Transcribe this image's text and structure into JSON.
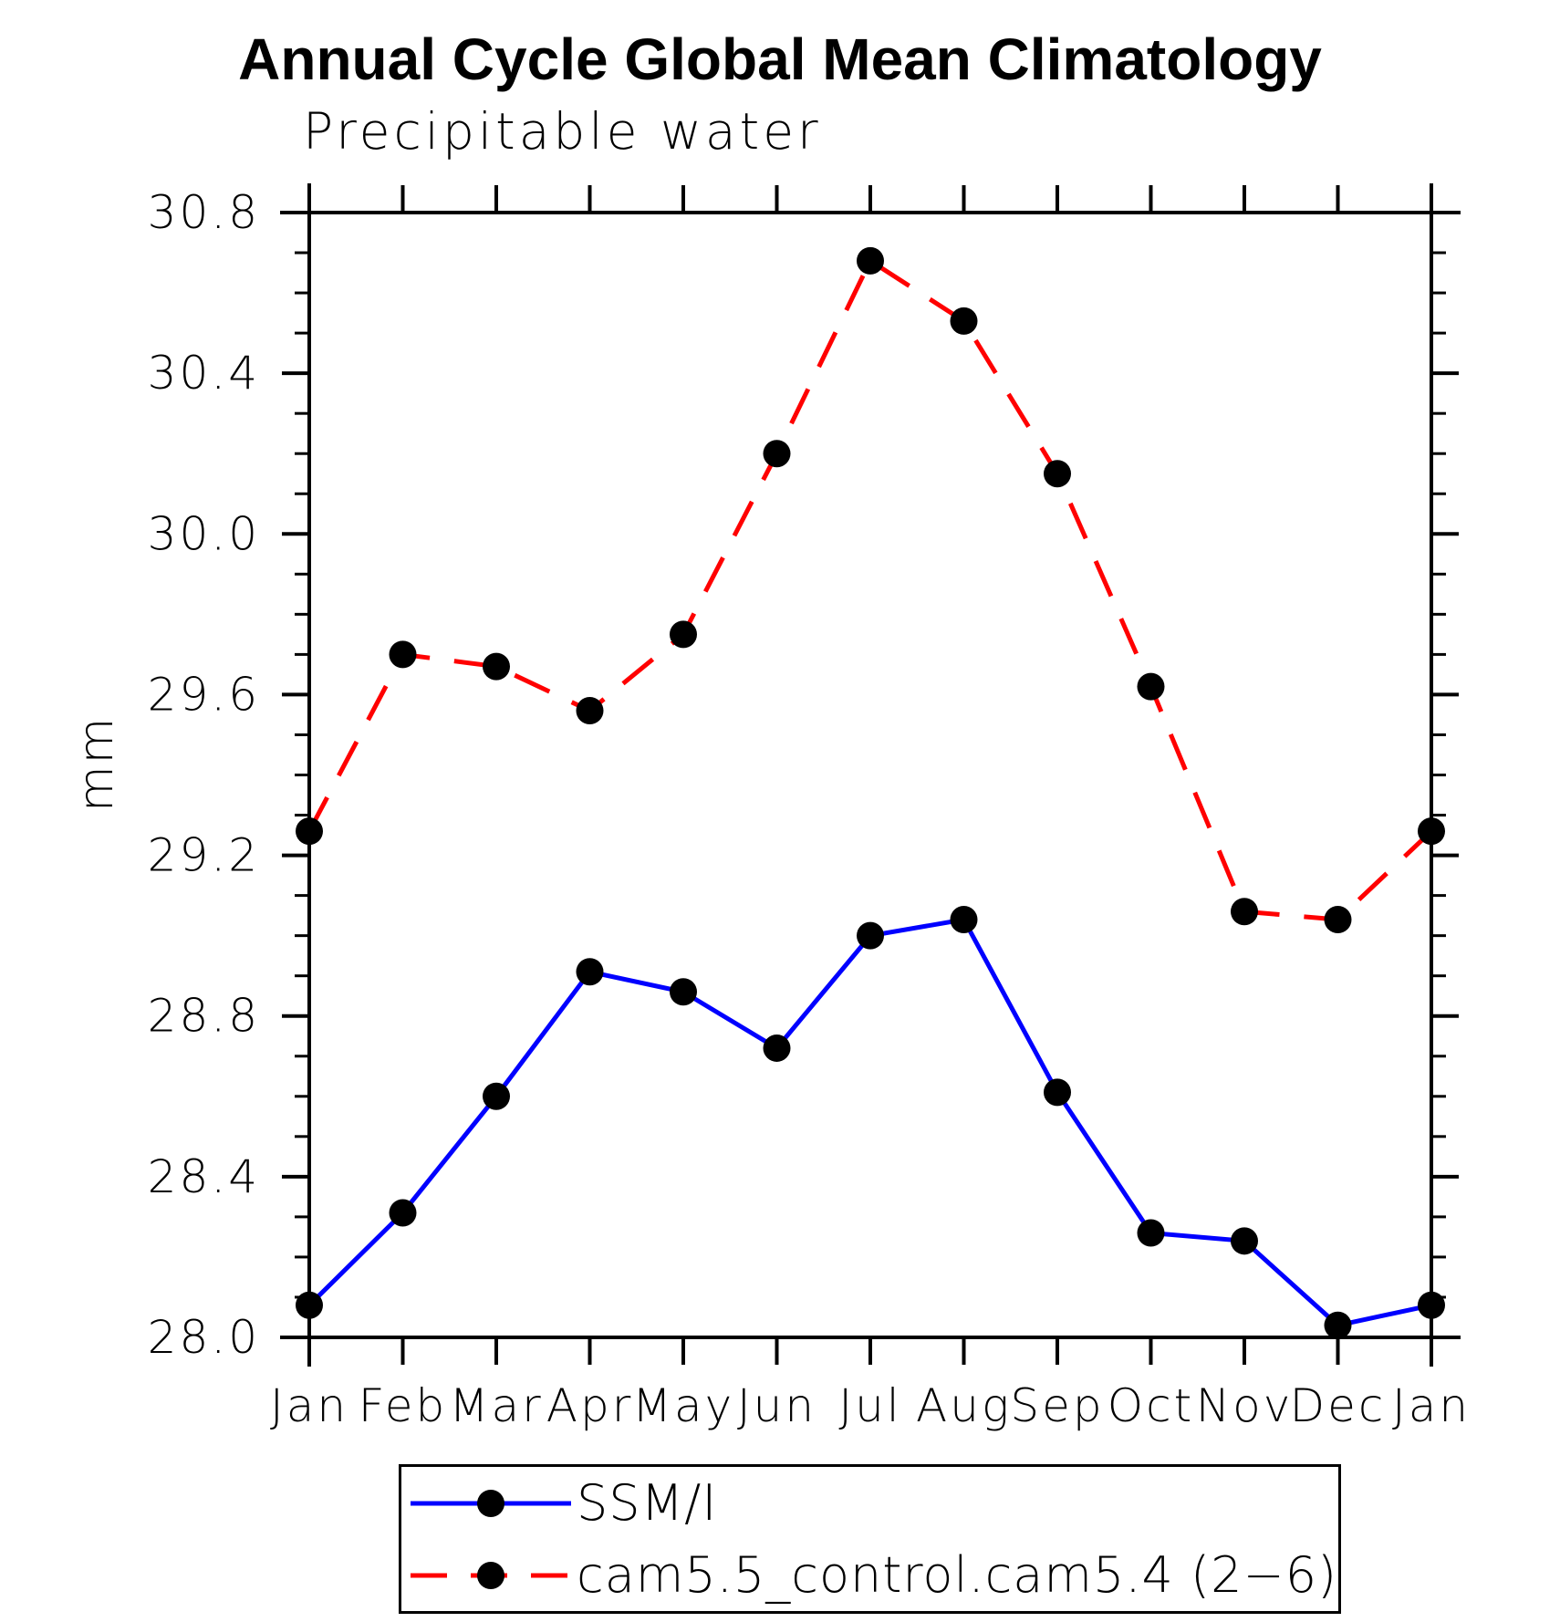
{
  "title": "Annual Cycle Global Mean Climatology",
  "chart_data": {
    "type": "line",
    "title": "Annual Cycle Global Mean Climatology",
    "subtitle": "Precipitable water",
    "ylabel": "mm",
    "xlabel": "",
    "categories": [
      "Jan",
      "Feb",
      "Mar",
      "Apr",
      "May",
      "Jun",
      "Jul",
      "Aug",
      "Sep",
      "Oct",
      "Nov",
      "Dec",
      "Jan"
    ],
    "series": [
      {
        "name": "SSM/I",
        "color": "#0000ff",
        "line_style": "solid",
        "values": [
          28.08,
          28.31,
          28.6,
          28.91,
          28.86,
          28.72,
          29.0,
          29.04,
          28.61,
          28.26,
          28.24,
          28.03,
          28.08
        ]
      },
      {
        "name": "cam5.5_control.cam5.4 (2−6)",
        "color": "#ff0000",
        "line_style": "dashed",
        "values": [
          29.26,
          29.7,
          29.67,
          29.56,
          29.75,
          30.2,
          30.68,
          30.53,
          30.15,
          29.62,
          29.06,
          29.04,
          29.26
        ]
      }
    ],
    "ylim": [
      28.0,
      30.8
    ],
    "yticks": [
      "28.0",
      "28.4",
      "28.8",
      "29.2",
      "29.6",
      "30.0",
      "30.4",
      "30.8"
    ],
    "ytick_major_step": 0.4,
    "ytick_minor_step": 0.1,
    "marker": "filled-circle",
    "marker_color": "#000000",
    "grid": false,
    "legend_position": "bottom"
  }
}
